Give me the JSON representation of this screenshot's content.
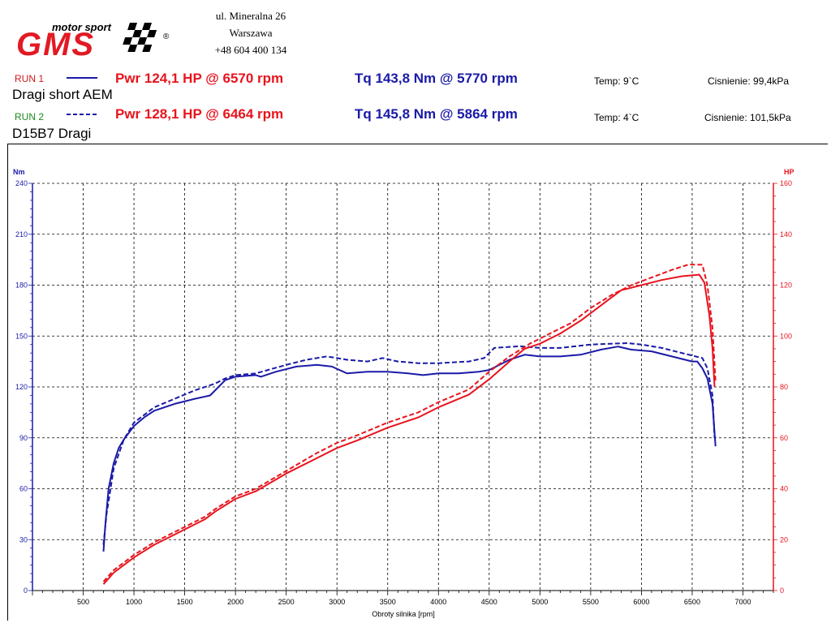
{
  "header": {
    "logo": {
      "tagline": "motor sport",
      "letters": "GMS",
      "registered": "®"
    },
    "address": [
      "ul. Mineralna 26",
      "Warszawa",
      "+48 604 400 134"
    ]
  },
  "runs": [
    {
      "label": "RUN 1",
      "label_color": "#d01818",
      "line_style": "solid",
      "sample": "Dragi short AEM",
      "power_text": "Pwr 124,1 HP @ 6570 rpm",
      "torque_text": "Tq 143,8 Nm @ 5770 rpm",
      "temp": "Temp: 9`C",
      "pressure": "Cisnienie: 99,4kPa"
    },
    {
      "label": "RUN 2",
      "label_color": "#1a8a1a",
      "line_style": "dashed",
      "sample": "D15B7 Dragi",
      "power_text": "Pwr 128,1 HP @ 6464 rpm",
      "torque_text": "Tq 145,8 Nm @ 5864 rpm",
      "temp": "Temp: 4`C",
      "pressure": "Cisnienie: 101,5kPa"
    }
  ],
  "chart_data": {
    "type": "line",
    "xlabel": "Obroty silnika [rpm]",
    "x_ticks": [
      500,
      1000,
      1500,
      2000,
      2500,
      3000,
      3500,
      4000,
      4500,
      5000,
      5500,
      6000,
      6500,
      7000
    ],
    "xlim": [
      0,
      7300
    ],
    "y_left": {
      "label": "Nm",
      "ticks": [
        0,
        30,
        60,
        90,
        120,
        150,
        180,
        210,
        240
      ],
      "lim": [
        0,
        240
      ],
      "color": "#1a1aa8"
    },
    "y_right": {
      "label": "HP",
      "ticks": [
        0,
        20,
        40,
        60,
        80,
        100,
        120,
        140,
        160
      ],
      "lim": [
        0,
        160
      ],
      "color": "#e8141e"
    },
    "grid": true,
    "colors": {
      "torque": "#1a1aa8",
      "power": "#e8141e"
    },
    "series": [
      {
        "run": "RUN 1",
        "quantity": "torque",
        "axis": "left",
        "style": "solid",
        "points": [
          [
            700,
            23
          ],
          [
            720,
            40
          ],
          [
            750,
            60
          ],
          [
            800,
            75
          ],
          [
            850,
            84
          ],
          [
            900,
            89
          ],
          [
            1000,
            97
          ],
          [
            1100,
            102
          ],
          [
            1200,
            106
          ],
          [
            1400,
            110
          ],
          [
            1600,
            113
          ],
          [
            1750,
            115
          ],
          [
            1900,
            124
          ],
          [
            2000,
            126
          ],
          [
            2200,
            127
          ],
          [
            2250,
            126
          ],
          [
            2400,
            129
          ],
          [
            2600,
            132
          ],
          [
            2800,
            133
          ],
          [
            2950,
            132
          ],
          [
            3100,
            128
          ],
          [
            3300,
            129
          ],
          [
            3500,
            129
          ],
          [
            3700,
            128
          ],
          [
            3850,
            127
          ],
          [
            4000,
            128
          ],
          [
            4200,
            128
          ],
          [
            4400,
            129
          ],
          [
            4500,
            130
          ],
          [
            4700,
            136
          ],
          [
            4850,
            139
          ],
          [
            5000,
            138
          ],
          [
            5200,
            138
          ],
          [
            5400,
            139
          ],
          [
            5600,
            142
          ],
          [
            5770,
            143.8
          ],
          [
            5900,
            142
          ],
          [
            6100,
            141
          ],
          [
            6300,
            138
          ],
          [
            6500,
            135
          ],
          [
            6550,
            135
          ],
          [
            6600,
            131
          ],
          [
            6650,
            125
          ],
          [
            6700,
            110
          ],
          [
            6730,
            85
          ]
        ]
      },
      {
        "run": "RUN 2",
        "quantity": "torque",
        "axis": "left",
        "style": "dashed",
        "points": [
          [
            700,
            27
          ],
          [
            730,
            45
          ],
          [
            800,
            72
          ],
          [
            900,
            89
          ],
          [
            1000,
            99
          ],
          [
            1200,
            108
          ],
          [
            1400,
            113
          ],
          [
            1600,
            118
          ],
          [
            1800,
            122
          ],
          [
            1900,
            125
          ],
          [
            2000,
            127
          ],
          [
            2200,
            128
          ],
          [
            2500,
            133
          ],
          [
            2700,
            136
          ],
          [
            2900,
            138
          ],
          [
            3000,
            137
          ],
          [
            3100,
            136
          ],
          [
            3300,
            135
          ],
          [
            3450,
            137
          ],
          [
            3600,
            135
          ],
          [
            3800,
            134
          ],
          [
            4000,
            134
          ],
          [
            4300,
            135
          ],
          [
            4450,
            137
          ],
          [
            4550,
            143
          ],
          [
            4800,
            144
          ],
          [
            5000,
            143
          ],
          [
            5200,
            143
          ],
          [
            5500,
            145
          ],
          [
            5700,
            145.5
          ],
          [
            5864,
            145.8
          ],
          [
            6000,
            145
          ],
          [
            6200,
            143
          ],
          [
            6400,
            140
          ],
          [
            6600,
            137
          ],
          [
            6650,
            131
          ],
          [
            6700,
            115
          ],
          [
            6720,
            90
          ]
        ]
      },
      {
        "run": "RUN 1",
        "quantity": "power",
        "axis": "right",
        "style": "solid",
        "points": [
          [
            700,
            2.5
          ],
          [
            800,
            7
          ],
          [
            1000,
            13
          ],
          [
            1200,
            18
          ],
          [
            1400,
            22
          ],
          [
            1600,
            26
          ],
          [
            1700,
            28
          ],
          [
            1800,
            31
          ],
          [
            2000,
            36
          ],
          [
            2200,
            39
          ],
          [
            2500,
            46
          ],
          [
            2800,
            52
          ],
          [
            3000,
            56
          ],
          [
            3200,
            59
          ],
          [
            3500,
            64
          ],
          [
            3800,
            68
          ],
          [
            4000,
            72
          ],
          [
            4300,
            77
          ],
          [
            4500,
            83
          ],
          [
            4700,
            90
          ],
          [
            4850,
            95
          ],
          [
            5000,
            97
          ],
          [
            5200,
            101
          ],
          [
            5400,
            106
          ],
          [
            5600,
            112
          ],
          [
            5800,
            118
          ],
          [
            6000,
            120
          ],
          [
            6200,
            122
          ],
          [
            6400,
            123.5
          ],
          [
            6570,
            124.1
          ],
          [
            6620,
            121
          ],
          [
            6670,
            108
          ],
          [
            6700,
            95
          ],
          [
            6720,
            80
          ]
        ]
      },
      {
        "run": "RUN 2",
        "quantity": "power",
        "axis": "right",
        "style": "dashed",
        "points": [
          [
            700,
            3.5
          ],
          [
            800,
            8
          ],
          [
            1000,
            14
          ],
          [
            1200,
            19
          ],
          [
            1500,
            25
          ],
          [
            1700,
            29
          ],
          [
            1800,
            32
          ],
          [
            2000,
            37
          ],
          [
            2200,
            40
          ],
          [
            2500,
            47
          ],
          [
            2800,
            54
          ],
          [
            3000,
            58
          ],
          [
            3200,
            61
          ],
          [
            3500,
            66
          ],
          [
            3800,
            70
          ],
          [
            4000,
            74
          ],
          [
            4300,
            79
          ],
          [
            4500,
            86
          ],
          [
            4700,
            92
          ],
          [
            4900,
            97
          ],
          [
            5100,
            101
          ],
          [
            5300,
            105
          ],
          [
            5500,
            111
          ],
          [
            5700,
            116
          ],
          [
            5900,
            120
          ],
          [
            6100,
            123
          ],
          [
            6300,
            126
          ],
          [
            6464,
            128.1
          ],
          [
            6600,
            128
          ],
          [
            6650,
            120
          ],
          [
            6700,
            103
          ],
          [
            6730,
            82
          ]
        ]
      }
    ]
  }
}
